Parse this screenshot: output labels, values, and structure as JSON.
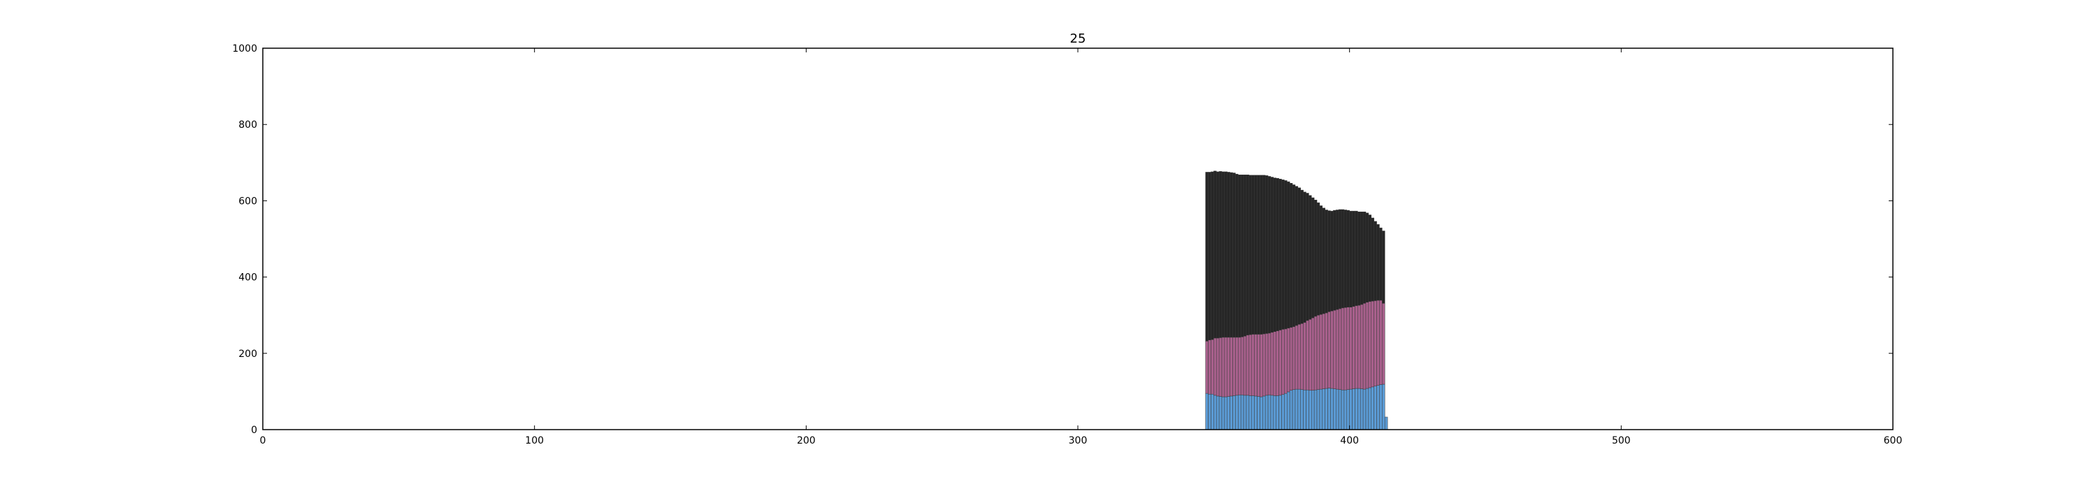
{
  "chart_data": {
    "type": "bar",
    "stacked": true,
    "title": "25",
    "xlabel": "",
    "ylabel": "",
    "xlim": [
      0,
      600
    ],
    "ylim": [
      0,
      1000
    ],
    "x_ticks": [
      "0",
      "100",
      "200",
      "300",
      "400",
      "500",
      "600"
    ],
    "y_ticks": [
      "0",
      "200",
      "400",
      "600",
      "800",
      "1000"
    ],
    "grid": false,
    "legend": "none",
    "x": [
      347,
      348,
      349,
      350,
      351,
      352,
      353,
      354,
      355,
      356,
      357,
      358,
      359,
      360,
      361,
      362,
      363,
      364,
      365,
      366,
      367,
      368,
      369,
      370,
      371,
      372,
      373,
      374,
      375,
      376,
      377,
      378,
      379,
      380,
      381,
      382,
      383,
      384,
      385,
      386,
      387,
      388,
      389,
      390,
      391,
      392,
      393,
      394,
      395,
      396,
      397,
      398,
      399,
      400,
      401,
      402,
      403,
      404,
      405,
      406,
      407,
      408,
      409,
      410,
      411,
      412,
      413
    ],
    "series": [
      {
        "color": "#5b9bd5",
        "values": [
          95,
          93,
          93,
          90,
          88,
          87,
          86,
          86,
          87,
          88,
          89,
          90,
          91,
          91,
          90,
          90,
          89,
          89,
          88,
          87,
          86,
          88,
          90,
          91,
          90,
          89,
          89,
          90,
          92,
          95,
          99,
          103,
          105,
          106,
          106,
          105,
          104,
          104,
          103,
          103,
          104,
          105,
          106,
          107,
          108,
          109,
          108,
          107,
          106,
          105,
          104,
          104,
          105,
          106,
          107,
          108,
          108,
          107,
          106,
          108,
          110,
          112,
          114,
          116,
          118,
          119,
          33
        ]
      },
      {
        "color": "#a8608c",
        "values": [
          137,
          142,
          143,
          150,
          152,
          154,
          156,
          156,
          155,
          154,
          153,
          152,
          151,
          152,
          155,
          158,
          160,
          161,
          162,
          163,
          164,
          163,
          162,
          162,
          165,
          168,
          170,
          171,
          171,
          169,
          167,
          165,
          165,
          167,
          170,
          173,
          177,
          182,
          186,
          190,
          193,
          195,
          196,
          197,
          198,
          200,
          203,
          206,
          209,
          212,
          215,
          216,
          216,
          215,
          216,
          217,
          218,
          221,
          225,
          226,
          226,
          225,
          224,
          223,
          221,
          212,
          0
        ]
      },
      {
        "color": "#262626",
        "values": [
          443,
          440,
          440,
          438,
          436,
          436,
          434,
          434,
          433,
          432,
          431,
          428,
          426,
          425,
          423,
          420,
          418,
          417,
          417,
          417,
          417,
          416,
          414,
          411,
          407,
          403,
          400,
          396,
          392,
          389,
          384,
          378,
          372,
          365,
          358,
          350,
          342,
          334,
          325,
          315,
          305,
          295,
          285,
          277,
          270,
          265,
          262,
          262,
          261,
          260,
          258,
          256,
          254,
          252,
          250,
          248,
          245,
          243,
          240,
          234,
          227,
          218,
          208,
          199,
          190,
          190,
          0
        ]
      }
    ]
  }
}
